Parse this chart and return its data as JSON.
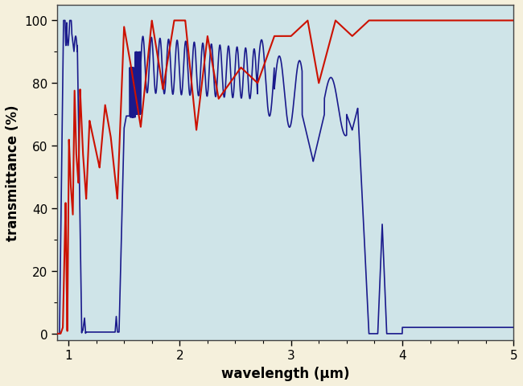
{
  "xlabel": "wavelength (μm)",
  "ylabel": "transmittance (%)",
  "xlim": [
    0.9,
    5.0
  ],
  "ylim": [
    -2,
    105
  ],
  "xticks": [
    1,
    2,
    3,
    4,
    5
  ],
  "yticks": [
    0,
    20,
    40,
    60,
    80,
    100
  ],
  "background_color": "#f5f0dc",
  "plot_bg_color": "#cfe4e8",
  "blue_color": "#1a1a8c",
  "red_color": "#cc1100",
  "fig_width": 6.5,
  "fig_height": 4.81
}
